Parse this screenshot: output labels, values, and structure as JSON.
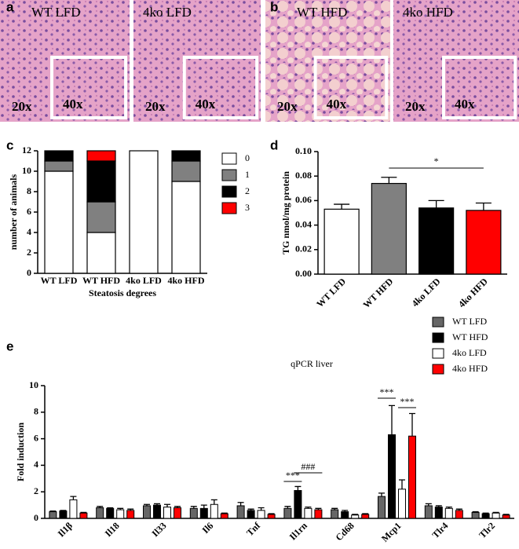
{
  "figure": {
    "panel_labels": [
      "a",
      "b",
      "c",
      "d",
      "e"
    ],
    "images": [
      {
        "label": "WT LFD",
        "low": "20x",
        "high": "40x"
      },
      {
        "label": "4ko LFD",
        "low": "20x",
        "high": "40x"
      },
      {
        "label": "WT HFD",
        "low": "20x",
        "high": "40x"
      },
      {
        "label": "4ko HFD",
        "low": "20x",
        "high": "40x"
      }
    ]
  },
  "chart_data": [
    {
      "type": "stacked_bar",
      "y_label": "number of animals",
      "x_label": "Steatosis degrees",
      "categories": [
        "WT LFD",
        "WT HFD",
        "4ko LFD",
        "4ko HFD"
      ],
      "series": [
        {
          "name": "0",
          "color": "#ffffff",
          "values": [
            10,
            4,
            12,
            9
          ]
        },
        {
          "name": "1",
          "color": "#808080",
          "values": [
            1,
            3,
            0,
            2
          ]
        },
        {
          "name": "2",
          "color": "#000000",
          "values": [
            1,
            4,
            0,
            1
          ]
        },
        {
          "name": "3",
          "color": "#ff0000",
          "values": [
            0,
            1,
            0,
            0
          ]
        }
      ],
      "ylim": [
        0,
        12
      ],
      "yticks": [
        0,
        2,
        4,
        6,
        8,
        10,
        12
      ],
      "legend": "right"
    },
    {
      "type": "bar",
      "y_label": "TG nmol/mg protein",
      "categories": [
        "WT LFD",
        "WT HFD",
        "4ko LFD",
        "4ko HFD"
      ],
      "values": [
        0.053,
        0.074,
        0.054,
        0.052
      ],
      "errors": [
        0.004,
        0.005,
        0.006,
        0.006
      ],
      "colors": [
        "#ffffff",
        "#808080",
        "#000000",
        "#ff0000"
      ],
      "ylim": [
        0,
        0.1
      ],
      "yticks": [
        {
          "value": 0,
          "label": "0.00"
        },
        {
          "value": 0.02,
          "label": "0.02"
        },
        {
          "value": 0.04,
          "label": "0.04"
        },
        {
          "value": 0.06,
          "label": "0.06"
        },
        {
          "value": 0.08,
          "label": "0.08"
        },
        {
          "value": 0.1,
          "label": "0.10"
        }
      ],
      "annotations": [
        "*"
      ]
    },
    {
      "type": "grouped_bar",
      "title": "qPCR liver",
      "y_label": "Fold induction",
      "categories": [
        "Il1β",
        "Il18",
        "Il33",
        "Il6",
        "Tnf",
        "Il1rn",
        "Cd68",
        "Mcp1",
        "Tlr4",
        "Tlr2"
      ],
      "series": [
        {
          "name": "WT LFD",
          "color": "#666666",
          "values": [
            0.5,
            0.8,
            0.95,
            0.75,
            0.95,
            0.75,
            0.65,
            1.65,
            0.95,
            0.45
          ],
          "errors": [
            0.05,
            0.1,
            0.1,
            0.15,
            0.25,
            0.15,
            0.1,
            0.25,
            0.15,
            0.05
          ]
        },
        {
          "name": "WT HFD",
          "color": "#000000",
          "values": [
            0.55,
            0.75,
            1.0,
            0.75,
            0.6,
            2.1,
            0.5,
            6.3,
            0.85,
            0.35
          ],
          "errors": [
            0.05,
            0.05,
            0.1,
            0.25,
            0.1,
            0.3,
            0.1,
            2.2,
            0.1,
            0.05
          ]
        },
        {
          "name": "4ko LFD",
          "color": "#ffffff",
          "values": [
            1.4,
            0.65,
            0.85,
            1.05,
            0.6,
            0.75,
            0.25,
            2.2,
            0.75,
            0.4
          ],
          "errors": [
            0.25,
            0.1,
            0.2,
            0.35,
            0.2,
            0.1,
            0.05,
            0.7,
            0.1,
            0.05
          ]
        },
        {
          "name": "4ko HFD",
          "color": "#ff0000",
          "values": [
            0.4,
            0.6,
            0.8,
            0.35,
            0.3,
            0.65,
            0.3,
            6.2,
            0.6,
            0.25
          ],
          "errors": [
            0.05,
            0.1,
            0.1,
            0.05,
            0.05,
            0.1,
            0.05,
            1.7,
            0.1,
            0.05
          ]
        }
      ],
      "ylim": [
        0,
        10
      ],
      "yticks": [
        0,
        2,
        4,
        6,
        8,
        10
      ],
      "annotations": [
        "***",
        "###",
        "***",
        "***"
      ]
    }
  ]
}
